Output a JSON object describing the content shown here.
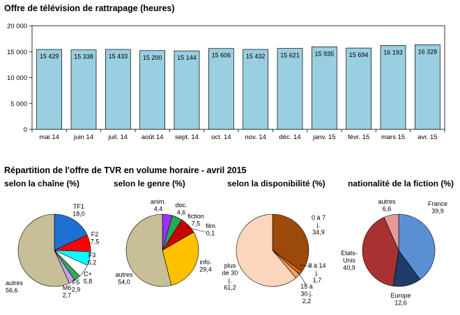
{
  "chart_data": [
    {
      "type": "bar",
      "title": "Offre de télévision de rattrapage (heures)",
      "categories": [
        "mai 14",
        "juin 14",
        "juil. 14",
        "août 14",
        "sept. 14",
        "oct. 14",
        "nov. 14",
        "déc. 14",
        "janv. 15",
        "févr. 15",
        "mars 15",
        "avr. 15"
      ],
      "values": [
        15429,
        15338,
        15433,
        15200,
        15144,
        15606,
        15432,
        15621,
        15935,
        15694,
        16193,
        16328
      ],
      "value_labels": [
        "15 429",
        "15 338",
        "15 433",
        "15 200",
        "15 144",
        "15 606",
        "15 432",
        "15 621",
        "15 935",
        "15 694",
        "16 193",
        "16 328"
      ],
      "ylim": [
        0,
        20000
      ],
      "yticks": [
        0,
        5000,
        10000,
        15000,
        20000
      ],
      "ytick_labels": [
        "0",
        "5 000",
        "10 000",
        "15 000",
        "20 000"
      ],
      "bar_color": "#99cfe0",
      "grid": false
    },
    {
      "type": "pie",
      "section_title": "Répartition de l'offre de TVR en volume horaire - avril 2015",
      "title": "selon la chaîne (%)",
      "slices": [
        {
          "label": "TF1",
          "value_label": "18,0",
          "value": 18.0,
          "color": "#1f6fd1"
        },
        {
          "label": "F2",
          "value_label": "7,5",
          "value": 7.5,
          "color": "#ff0000"
        },
        {
          "label": "F3",
          "value_label": "6,2",
          "value": 6.2,
          "color": "#00ffff"
        },
        {
          "label": "C+",
          "value_label": "5,8",
          "value": 5.8,
          "color": "#ffffff"
        },
        {
          "label": "F5",
          "value_label": "2,9",
          "value": 2.9,
          "color": "#33aa55"
        },
        {
          "label": "M6",
          "value_label": "2,7",
          "value": 2.7,
          "color": "#c8a0e8"
        },
        {
          "label": "autres",
          "value_label": "56,6",
          "value": 56.6,
          "color": "#c8bf98"
        }
      ]
    },
    {
      "type": "pie",
      "title": "selon le genre (%)",
      "slices": [
        {
          "label": "anim.",
          "value_label": "4,4",
          "value": 4.4,
          "color": "#9933ff"
        },
        {
          "label": "doc.",
          "value_label": "4,6",
          "value": 4.6,
          "color": "#22aa55"
        },
        {
          "label": "fiction",
          "value_label": "7,5",
          "value": 7.5,
          "color": "#cc0000"
        },
        {
          "label": "film",
          "value_label": "0,1",
          "value": 0.1,
          "color": "#000000"
        },
        {
          "label": "info.",
          "value_label": "29,4",
          "value": 29.4,
          "color": "#ffc000"
        },
        {
          "label": "autres",
          "value_label": "54,0",
          "value": 54.0,
          "color": "#c8bf98"
        }
      ]
    },
    {
      "type": "pie",
      "title": "selon la disponibilité (%)",
      "slices": [
        {
          "label": "0 à 7 j.",
          "value_label": "34,9",
          "value": 34.9,
          "color": "#9c4a0a"
        },
        {
          "label": "8 à 14 j.",
          "value_label": "1,7",
          "value": 1.7,
          "color": "#e06a10"
        },
        {
          "label": "15 à 30 j.",
          "value_label": "2,2",
          "value": 2.2,
          "color": "#f0a060"
        },
        {
          "label": "plus de 30 j.",
          "value_label": "61,2",
          "value": 61.2,
          "color": "#fbd5bc"
        }
      ]
    },
    {
      "type": "pie",
      "title": "nationalité de la fiction (%)",
      "slices": [
        {
          "label": "France",
          "value_label": "39,9",
          "value": 39.9,
          "color": "#5b8fd4"
        },
        {
          "label": "Europe",
          "value_label": "12,6",
          "value": 12.6,
          "color": "#1f3b66"
        },
        {
          "label": "Etats-Unis",
          "value_label": "40,9",
          "value": 40.9,
          "color": "#a83232"
        },
        {
          "label": "autres",
          "value_label": "6,6",
          "value": 6.6,
          "color": "#e89a9a"
        }
      ]
    }
  ]
}
